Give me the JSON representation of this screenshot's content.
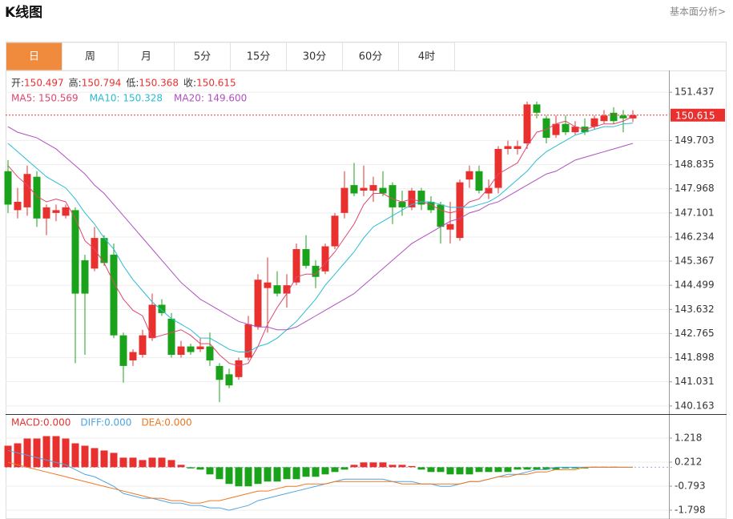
{
  "header": {
    "title": "K线图",
    "link": "基本面分析>"
  },
  "tabs": [
    "日",
    "周",
    "月",
    "5分",
    "15分",
    "30分",
    "60分",
    "4时"
  ],
  "active_tab": 0,
  "chart_data": [
    {
      "type": "candlestick",
      "up_color": "#e8312f",
      "down_color": "#1aa31a",
      "info_labels": [
        "开:",
        "高:",
        "低:",
        "收:"
      ],
      "ohlc": [
        [
          148.6,
          149.0,
          147.1,
          147.4
        ],
        [
          147.2,
          148.0,
          146.9,
          147.5
        ],
        [
          147.3,
          148.8,
          147.0,
          148.5
        ],
        [
          148.4,
          148.6,
          146.6,
          146.9
        ],
        [
          146.9,
          147.4,
          146.3,
          147.3
        ],
        [
          147.1,
          147.4,
          146.8,
          147.2
        ],
        [
          147.0,
          147.4,
          146.9,
          147.3
        ],
        [
          147.2,
          147.3,
          141.7,
          144.2
        ],
        [
          145.4,
          145.6,
          142.0,
          144.2
        ],
        [
          145.1,
          146.6,
          145.0,
          146.2
        ],
        [
          146.2,
          146.3,
          145.2,
          145.3
        ],
        [
          145.6,
          146.0,
          142.6,
          142.7
        ],
        [
          142.7,
          142.8,
          141.0,
          141.6
        ],
        [
          141.8,
          142.2,
          141.6,
          142.1
        ],
        [
          142.0,
          142.9,
          141.9,
          142.7
        ],
        [
          142.6,
          144.2,
          142.5,
          143.8
        ],
        [
          143.8,
          144.0,
          143.4,
          143.5
        ],
        [
          143.3,
          143.5,
          141.9,
          142.0
        ],
        [
          142.0,
          142.5,
          141.9,
          142.3
        ],
        [
          142.3,
          142.4,
          142.0,
          142.1
        ],
        [
          142.2,
          142.6,
          142.1,
          142.3
        ],
        [
          142.3,
          142.8,
          141.6,
          141.8
        ],
        [
          141.6,
          141.7,
          140.3,
          141.1
        ],
        [
          141.3,
          141.5,
          140.8,
          140.9
        ],
        [
          141.2,
          141.9,
          141.1,
          141.8
        ],
        [
          141.9,
          143.4,
          141.8,
          143.1
        ],
        [
          143.0,
          144.9,
          142.9,
          144.7
        ],
        [
          144.4,
          145.5,
          142.8,
          144.6
        ],
        [
          144.5,
          145.0,
          144.1,
          144.2
        ],
        [
          144.2,
          144.9,
          143.7,
          144.5
        ],
        [
          144.6,
          146.0,
          144.5,
          145.8
        ],
        [
          145.8,
          146.3,
          145.1,
          145.2
        ],
        [
          145.2,
          145.4,
          144.4,
          144.8
        ],
        [
          145.0,
          146.0,
          144.9,
          145.9
        ],
        [
          145.9,
          147.1,
          145.8,
          147.0
        ],
        [
          147.1,
          148.6,
          146.9,
          148.0
        ],
        [
          148.1,
          148.9,
          147.7,
          147.8
        ],
        [
          147.9,
          148.8,
          147.7,
          148.0
        ],
        [
          147.9,
          148.4,
          147.5,
          148.1
        ],
        [
          148.0,
          148.6,
          147.7,
          147.8
        ],
        [
          148.1,
          148.2,
          146.7,
          147.3
        ],
        [
          147.5,
          147.9,
          147.0,
          147.3
        ],
        [
          147.3,
          148.0,
          147.2,
          147.9
        ],
        [
          147.9,
          148.0,
          147.2,
          147.4
        ],
        [
          147.5,
          147.7,
          147.1,
          147.2
        ],
        [
          147.4,
          147.5,
          146.0,
          146.6
        ],
        [
          146.5,
          147.5,
          146.0,
          146.7
        ],
        [
          146.2,
          148.3,
          146.1,
          148.2
        ],
        [
          148.3,
          148.8,
          148.0,
          148.6
        ],
        [
          148.6,
          148.8,
          147.8,
          147.9
        ],
        [
          147.8,
          148.3,
          147.6,
          148.0
        ],
        [
          148.0,
          149.5,
          147.8,
          149.4
        ],
        [
          149.4,
          149.7,
          149.2,
          149.5
        ],
        [
          149.4,
          149.7,
          149.2,
          149.5
        ],
        [
          149.6,
          151.1,
          149.4,
          151.0
        ],
        [
          151.0,
          151.1,
          150.5,
          150.7
        ],
        [
          150.5,
          150.6,
          149.6,
          149.8
        ],
        [
          149.9,
          150.6,
          149.8,
          150.3
        ],
        [
          150.3,
          150.6,
          149.9,
          150.0
        ],
        [
          150.0,
          150.4,
          149.9,
          150.2
        ],
        [
          150.2,
          150.5,
          149.9,
          150.0
        ],
        [
          150.2,
          150.6,
          150.1,
          150.5
        ],
        [
          150.4,
          150.8,
          150.3,
          150.6
        ],
        [
          150.7,
          150.9,
          150.3,
          150.4
        ],
        [
          150.6,
          150.8,
          150.0,
          150.5
        ],
        [
          150.497,
          150.794,
          150.368,
          150.615
        ]
      ],
      "series": [
        {
          "label": "MA5: 150.569",
          "color": "#e0466e",
          "values": [
            148.8,
            148.4,
            148.1,
            147.7,
            147.5,
            147.6,
            147.5,
            146.9,
            146.1,
            145.8,
            145.3,
            144.6,
            144.0,
            143.6,
            143.4,
            142.6,
            142.7,
            142.8,
            142.9,
            142.7,
            142.4,
            142.4,
            142.0,
            141.7,
            141.6,
            141.7,
            142.3,
            143.1,
            143.7,
            144.2,
            144.8,
            144.9,
            144.9,
            145.3,
            145.7,
            146.2,
            146.7,
            147.4,
            147.8,
            147.8,
            147.6,
            147.5,
            147.6,
            147.5,
            147.4,
            147.2,
            147.1,
            147.2,
            147.5,
            147.6,
            148.0,
            148.5,
            148.7,
            148.9,
            149.5,
            150.0,
            150.1,
            150.3,
            150.4,
            150.2,
            150.1,
            150.2,
            150.3,
            150.3,
            150.4,
            150.569
          ]
        },
        {
          "label": "MA10: 150.328",
          "color": "#2bbcd4",
          "values": [
            149.6,
            149.3,
            149.0,
            148.7,
            148.4,
            148.2,
            148.0,
            147.6,
            147.1,
            146.7,
            146.2,
            145.8,
            145.2,
            144.7,
            144.3,
            143.9,
            143.6,
            143.3,
            143.1,
            142.9,
            142.6,
            142.6,
            142.4,
            142.2,
            142.1,
            142.1,
            142.3,
            142.4,
            142.6,
            142.9,
            143.2,
            143.6,
            144.0,
            144.5,
            144.9,
            145.3,
            145.7,
            146.2,
            146.6,
            146.8,
            147.0,
            147.2,
            147.4,
            147.5,
            147.5,
            147.4,
            147.3,
            147.3,
            147.3,
            147.4,
            147.5,
            147.7,
            148.0,
            148.3,
            148.6,
            149.0,
            149.3,
            149.5,
            149.7,
            149.9,
            150.0,
            150.1,
            150.2,
            150.2,
            150.3,
            150.328
          ]
        },
        {
          "label": "MA20: 149.600",
          "color": "#b050c0",
          "values": [
            150.2,
            150.0,
            149.9,
            149.8,
            149.6,
            149.4,
            149.1,
            148.8,
            148.5,
            148.1,
            147.8,
            147.4,
            147.0,
            146.6,
            146.2,
            145.8,
            145.4,
            145.0,
            144.6,
            144.3,
            144.0,
            143.8,
            143.6,
            143.4,
            143.2,
            143.1,
            143.0,
            143.0,
            142.9,
            142.9,
            143.0,
            143.2,
            143.4,
            143.6,
            143.8,
            144.0,
            144.2,
            144.5,
            144.8,
            145.1,
            145.4,
            145.7,
            146.0,
            146.2,
            146.4,
            146.6,
            146.8,
            146.9,
            147.1,
            147.2,
            147.4,
            147.5,
            147.7,
            147.9,
            148.1,
            148.3,
            148.5,
            148.6,
            148.8,
            149.0,
            149.1,
            149.2,
            149.3,
            149.4,
            149.5,
            149.6
          ]
        }
      ],
      "ylim": [
        139.87,
        152.22
      ],
      "yticks": [
        151.437,
        149.703,
        148.835,
        147.968,
        147.101,
        146.234,
        145.367,
        144.499,
        143.632,
        142.765,
        141.898,
        141.031,
        140.163
      ],
      "grid": true
    },
    {
      "type": "macd",
      "histogram": {
        "label": "MACD:0.000",
        "color": "#e8312f",
        "up_color": "#e8312f",
        "down_color": "#1aa31a",
        "values": [
          0.9,
          1.0,
          1.2,
          1.2,
          1.3,
          1.3,
          1.2,
          1.0,
          0.9,
          0.8,
          0.7,
          0.6,
          0.4,
          0.4,
          0.3,
          0.4,
          0.4,
          0.3,
          0.1,
          -0.05,
          -0.1,
          -0.3,
          -0.5,
          -0.7,
          -0.8,
          -0.8,
          -0.7,
          -0.6,
          -0.6,
          -0.5,
          -0.5,
          -0.4,
          -0.4,
          -0.3,
          -0.2,
          -0.1,
          0.1,
          0.2,
          0.2,
          0.2,
          0.1,
          0.1,
          0.05,
          -0.1,
          -0.2,
          -0.2,
          -0.3,
          -0.3,
          -0.3,
          -0.2,
          -0.2,
          -0.2,
          -0.2,
          -0.1,
          -0.1,
          -0.1,
          -0.1,
          -0.1,
          -0.05,
          -0.05,
          -0.05,
          0.02,
          0.02,
          0.02,
          0.01,
          0.0
        ]
      },
      "series": [
        {
          "label": "DIFF:0.000",
          "color": "#4ea5e0",
          "values": [
            0.7,
            0.6,
            0.5,
            0.4,
            0.3,
            0.2,
            0.1,
            -0.1,
            -0.3,
            -0.4,
            -0.6,
            -0.8,
            -1.1,
            -1.2,
            -1.3,
            -1.3,
            -1.4,
            -1.5,
            -1.5,
            -1.6,
            -1.6,
            -1.7,
            -1.7,
            -1.8,
            -1.7,
            -1.6,
            -1.4,
            -1.3,
            -1.2,
            -1.1,
            -1.0,
            -0.9,
            -0.8,
            -0.7,
            -0.6,
            -0.5,
            -0.5,
            -0.5,
            -0.5,
            -0.5,
            -0.6,
            -0.6,
            -0.6,
            -0.7,
            -0.7,
            -0.8,
            -0.8,
            -0.7,
            -0.6,
            -0.6,
            -0.5,
            -0.4,
            -0.3,
            -0.3,
            -0.2,
            -0.1,
            -0.1,
            0.0,
            0.0,
            0.0,
            0.0,
            0.0,
            0.0,
            0.0,
            0.0,
            0.0
          ]
        },
        {
          "label": "DEA:0.000",
          "color": "#f07820",
          "values": [
            0.2,
            0.1,
            0.0,
            -0.1,
            -0.2,
            -0.3,
            -0.4,
            -0.5,
            -0.6,
            -0.7,
            -0.8,
            -0.9,
            -1.0,
            -1.1,
            -1.2,
            -1.3,
            -1.3,
            -1.4,
            -1.4,
            -1.5,
            -1.5,
            -1.4,
            -1.4,
            -1.3,
            -1.2,
            -1.1,
            -1.0,
            -1.0,
            -0.9,
            -0.8,
            -0.8,
            -0.7,
            -0.7,
            -0.7,
            -0.6,
            -0.6,
            -0.6,
            -0.6,
            -0.6,
            -0.6,
            -0.6,
            -0.7,
            -0.7,
            -0.7,
            -0.7,
            -0.7,
            -0.7,
            -0.7,
            -0.6,
            -0.6,
            -0.5,
            -0.4,
            -0.4,
            -0.3,
            -0.3,
            -0.2,
            -0.2,
            -0.1,
            -0.1,
            -0.1,
            0.0,
            0.0,
            0.0,
            0.0,
            0.0,
            0.0
          ]
        }
      ],
      "ylim": [
        -2.167,
        2.223
      ],
      "yticks": [
        1.218,
        0.212,
        -0.793,
        -1.798
      ],
      "grid": true
    }
  ]
}
